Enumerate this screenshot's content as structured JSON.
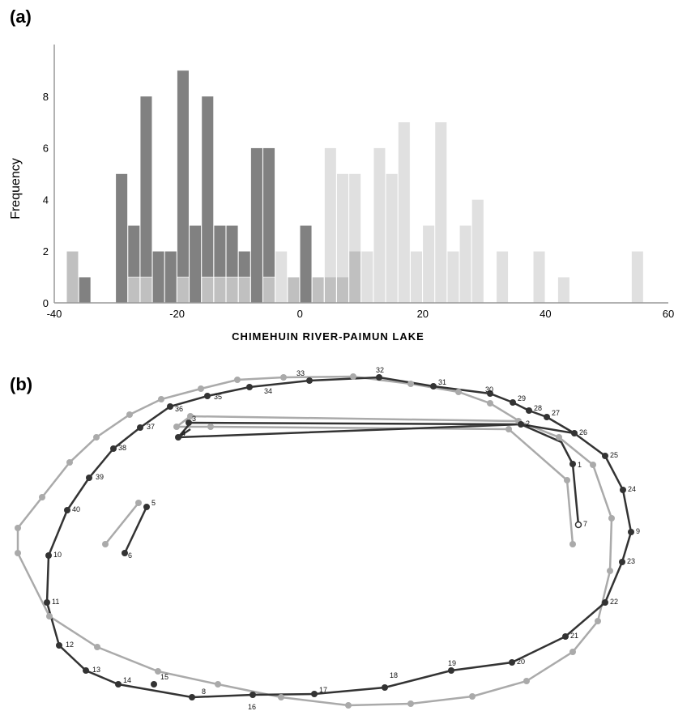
{
  "panel_a_label": "(a)",
  "panel_b_label": "(b)",
  "chart_data": [
    {
      "type": "bar",
      "xlabel": "CHIMEHUIN RIVER-PAIMUN LAKE",
      "ylabel": "Frequency",
      "xlim": [
        -40,
        60
      ],
      "ylim": [
        0,
        10
      ],
      "x_ticks": [
        -40,
        -20,
        0,
        20,
        40,
        60
      ],
      "x_tick_labels": [
        "-40",
        "-20",
        "0",
        "20",
        "40",
        "60"
      ],
      "y_ticks": [
        0,
        2,
        4,
        6,
        8
      ],
      "y_tick_labels": [
        "0",
        "2",
        "4",
        "6",
        "8"
      ],
      "bin_width": 2,
      "grid": false,
      "colors": {
        "dark": "#7a7a7a",
        "light": "#d6d6d6",
        "axis": "#999999"
      },
      "series": [
        {
          "bins": [
            [
              -38,
              2
            ],
            [
              -36,
              1
            ],
            [
              -30,
              5
            ],
            [
              -28,
              3
            ],
            [
              -26,
              8
            ],
            [
              -24,
              2
            ],
            [
              -22,
              2
            ],
            [
              -20,
              9
            ],
            [
              -18,
              3
            ],
            [
              -16,
              8
            ],
            [
              -14,
              3
            ],
            [
              -12,
              3
            ],
            [
              -10,
              2
            ],
            [
              -8,
              6
            ],
            [
              -6,
              6
            ],
            [
              -2,
              1
            ],
            [
              0,
              3
            ],
            [
              2,
              1
            ],
            [
              4,
              1
            ],
            [
              6,
              1
            ],
            [
              8,
              2
            ]
          ]
        },
        {
          "bins": [
            [
              -38,
              2
            ],
            [
              -28,
              1
            ],
            [
              -26,
              1
            ],
            [
              -20,
              1
            ],
            [
              -16,
              1
            ],
            [
              -14,
              1
            ],
            [
              -12,
              1
            ],
            [
              -10,
              1
            ],
            [
              -6,
              1
            ],
            [
              -4,
              2
            ],
            [
              -2,
              1
            ],
            [
              2,
              1
            ],
            [
              4,
              6
            ],
            [
              6,
              5
            ],
            [
              8,
              5
            ],
            [
              10,
              2
            ],
            [
              12,
              6
            ],
            [
              14,
              5
            ],
            [
              16,
              7
            ],
            [
              18,
              2
            ],
            [
              20,
              3
            ],
            [
              22,
              7
            ],
            [
              24,
              2
            ],
            [
              26,
              3
            ],
            [
              28,
              4
            ],
            [
              32,
              2
            ],
            [
              38,
              2
            ],
            [
              42,
              1
            ],
            [
              54,
              2
            ]
          ]
        }
      ]
    },
    {
      "type": "line",
      "colors": {
        "black": "#333333",
        "gray": "#aaaaaa"
      },
      "point_labels": [
        "1",
        "2",
        "3",
        "4",
        "5",
        "6",
        "7",
        "8",
        "9",
        "10",
        "11",
        "12",
        "13",
        "14",
        "15",
        "16",
        "17",
        "18",
        "19",
        "20",
        "21",
        "22",
        "23",
        "24",
        "25",
        "26",
        "27",
        "28",
        "29",
        "30",
        "31",
        "32",
        "33",
        "34",
        "35",
        "36",
        "37",
        "38",
        "39",
        "40"
      ]
    }
  ]
}
